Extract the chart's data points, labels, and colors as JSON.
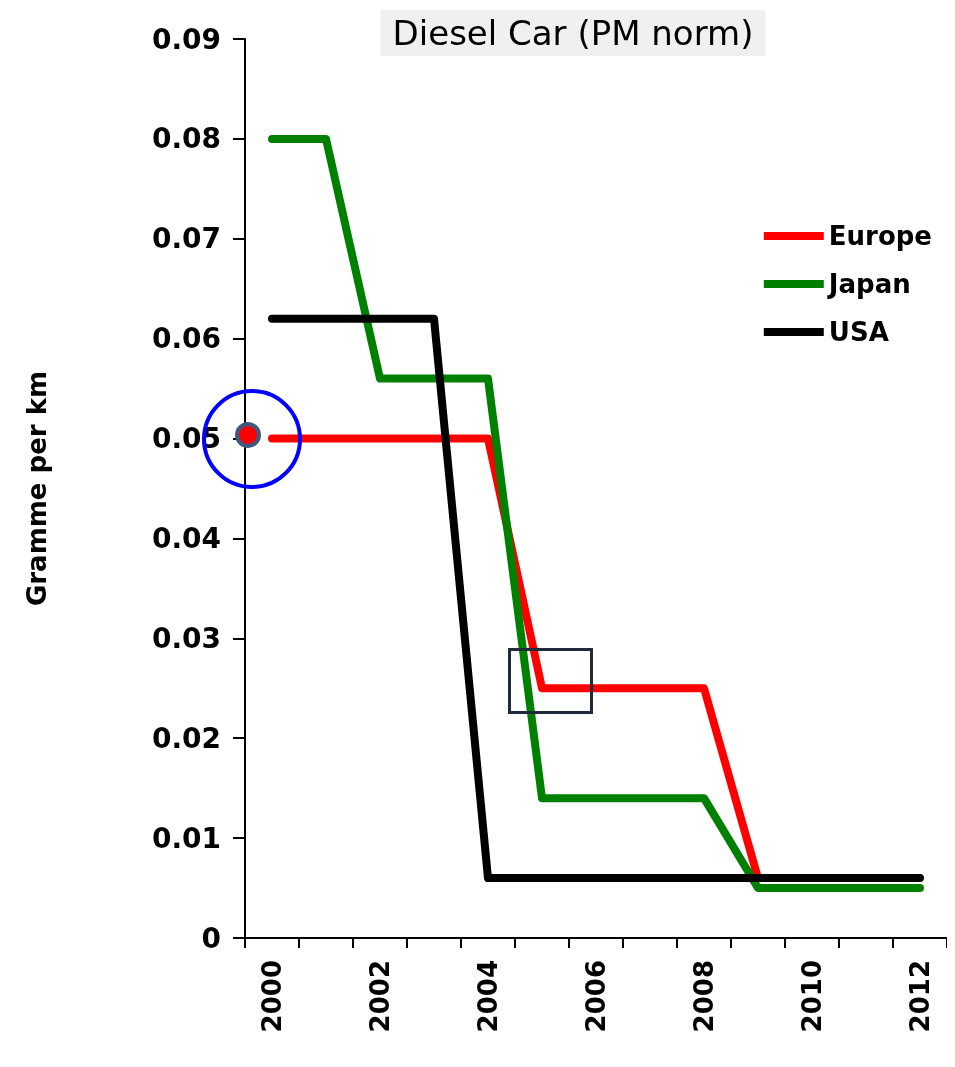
{
  "chart_data": {
    "type": "line",
    "title": "Diesel Car (PM norm)",
    "ylabel": "Gramme per km",
    "categories": [
      "2000",
      null,
      "2002",
      null,
      "2004",
      null,
      "2006",
      null,
      "2008",
      null,
      "2010",
      null,
      "2012"
    ],
    "series": [
      {
        "name": "Europe",
        "color": "#ff0000",
        "values": [
          0.05,
          0.05,
          0.05,
          0.05,
          0.05,
          0.025,
          0.025,
          0.025,
          0.025,
          0.006,
          null,
          null,
          null
        ]
      },
      {
        "name": "Japan",
        "color": "#008000",
        "values": [
          0.08,
          0.08,
          0.056,
          0.056,
          0.056,
          0.014,
          0.014,
          0.014,
          0.014,
          0.005,
          0.005,
          0.005,
          0.005
        ]
      },
      {
        "name": "USA",
        "color": "#000000",
        "values": [
          0.062,
          0.062,
          0.062,
          0.062,
          0.006,
          0.006,
          0.006,
          0.006,
          0.006,
          0.006,
          0.006,
          0.006,
          0.006
        ]
      }
    ],
    "ylim": [
      0,
      0.09
    ],
    "yticks": [
      0,
      0.01,
      0.02,
      0.03,
      0.04,
      0.05,
      0.06,
      0.07,
      0.08,
      0.09
    ],
    "grid": false,
    "legend": "top right",
    "marker": "none",
    "line_style": "solid"
  }
}
